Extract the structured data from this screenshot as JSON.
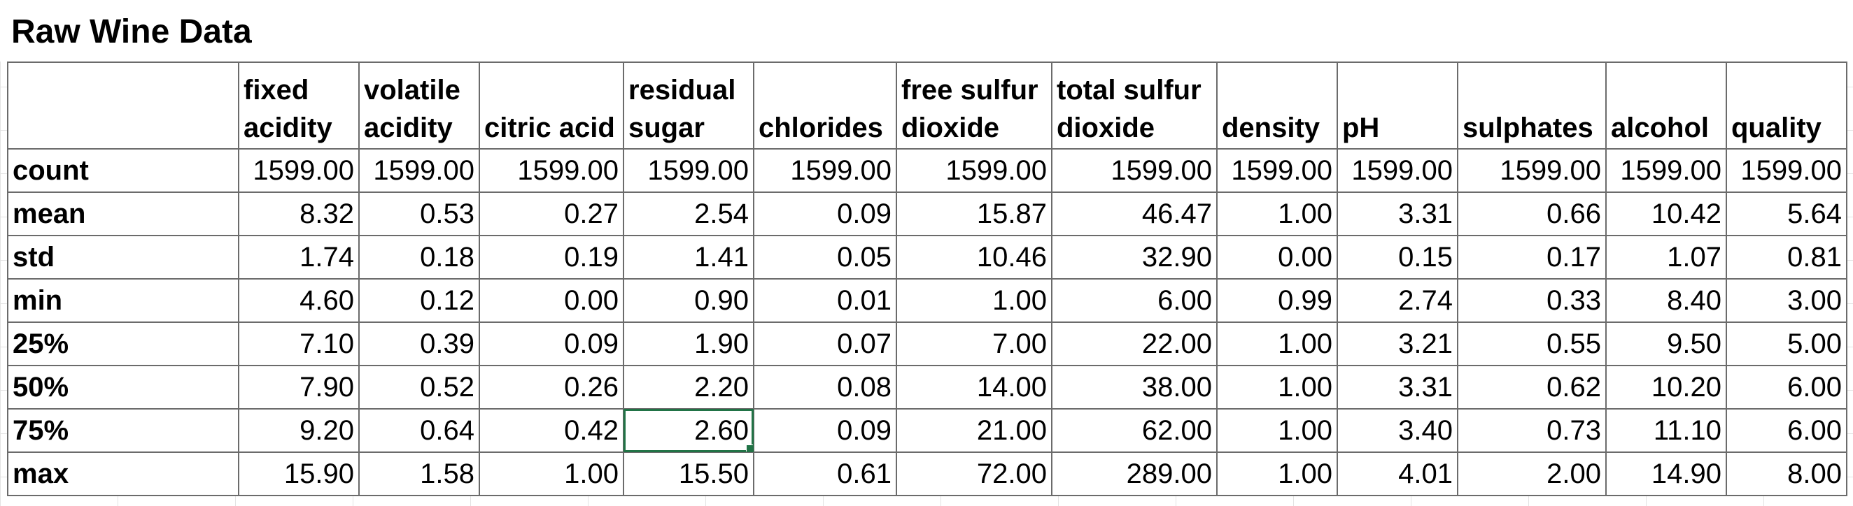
{
  "sheet": {
    "title": "Raw Wine Data"
  },
  "table": {
    "corner": "",
    "columns": [
      "fixed acidity",
      "volatile acidity",
      "citric acid",
      "residual sugar",
      "chlorides",
      "free sulfur dioxide",
      "total sulfur dioxide",
      "density",
      "pH",
      "sulphates",
      "alcohol",
      "quality"
    ],
    "rows": [
      {
        "label": "count",
        "values": [
          "1599.00",
          "1599.00",
          "1599.00",
          "1599.00",
          "1599.00",
          "1599.00",
          "1599.00",
          "1599.00",
          "1599.00",
          "1599.00",
          "1599.00",
          "1599.00"
        ]
      },
      {
        "label": "mean",
        "values": [
          "8.32",
          "0.53",
          "0.27",
          "2.54",
          "0.09",
          "15.87",
          "46.47",
          "1.00",
          "3.31",
          "0.66",
          "10.42",
          "5.64"
        ]
      },
      {
        "label": "std",
        "values": [
          "1.74",
          "0.18",
          "0.19",
          "1.41",
          "0.05",
          "10.46",
          "32.90",
          "0.00",
          "0.15",
          "0.17",
          "1.07",
          "0.81"
        ]
      },
      {
        "label": "min",
        "values": [
          "4.60",
          "0.12",
          "0.00",
          "0.90",
          "0.01",
          "1.00",
          "6.00",
          "0.99",
          "2.74",
          "0.33",
          "8.40",
          "3.00"
        ]
      },
      {
        "label": "25%",
        "values": [
          "7.10",
          "0.39",
          "0.09",
          "1.90",
          "0.07",
          "7.00",
          "22.00",
          "1.00",
          "3.21",
          "0.55",
          "9.50",
          "5.00"
        ]
      },
      {
        "label": "50%",
        "values": [
          "7.90",
          "0.52",
          "0.26",
          "2.20",
          "0.08",
          "14.00",
          "38.00",
          "1.00",
          "3.31",
          "0.62",
          "10.20",
          "6.00"
        ]
      },
      {
        "label": "75%",
        "values": [
          "9.20",
          "0.64",
          "0.42",
          "2.60",
          "0.09",
          "21.00",
          "62.00",
          "1.00",
          "3.40",
          "0.73",
          "11.10",
          "6.00"
        ]
      },
      {
        "label": "max",
        "values": [
          "15.90",
          "1.58",
          "1.00",
          "15.50",
          "0.61",
          "72.00",
          "289.00",
          "1.00",
          "4.01",
          "2.00",
          "14.90",
          "8.00"
        ]
      }
    ]
  },
  "selection": {
    "active_row": "75%",
    "active_column": "residual sugar",
    "outline_color": "#217346"
  }
}
